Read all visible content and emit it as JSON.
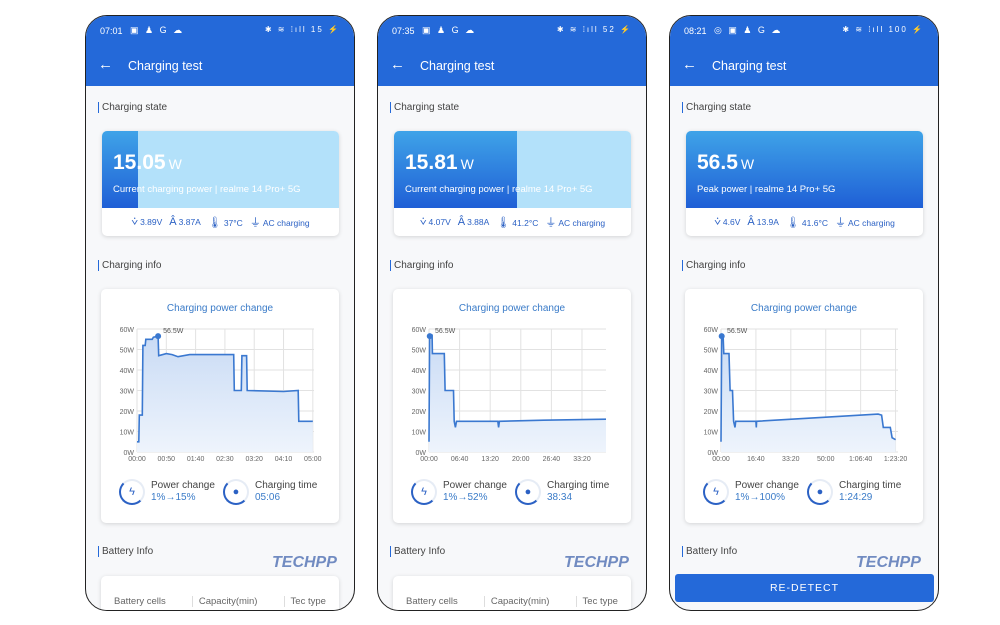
{
  "header": {
    "title": "Charging test",
    "back": "←"
  },
  "sections": {
    "state": "Charging state",
    "info": "Charging info",
    "battery": "Battery Info"
  },
  "chart_title": "Charging power change",
  "labels": {
    "power_change": "Power change",
    "charging_time": "Charging time",
    "ac": "AC charging"
  },
  "table_headers": [
    "Battery cells",
    "Capacity(min)",
    "Tec type"
  ],
  "redetect": "RE-DETECT",
  "watermark": "TECHPP",
  "colors": {
    "primary": "#2469d9",
    "line": "#3a78d0"
  },
  "phones": [
    {
      "status_time": "07:01",
      "left_icons": "▣ ♟ G ☁",
      "right_icons": "✱ ≋ ⁞ıll 15 ⚡",
      "power": "15.05",
      "unit": "W",
      "subtitle": "Current charging power | realme 14 Pro+ 5G",
      "progress_percent": 15,
      "voltage": "3.89V",
      "current": "3.87A",
      "temp": "37°C",
      "power_change": "1%→15%",
      "charging_time": "05:06"
    },
    {
      "status_time": "07:35",
      "left_icons": "▣ ♟ G ☁",
      "right_icons": "✱ ≋ ⁞ıll 52 ⚡",
      "power": "15.81",
      "unit": "W",
      "subtitle": "Current charging power | realme 14 Pro+ 5G",
      "progress_percent": 52,
      "voltage": "4.07V",
      "current": "3.88A",
      "temp": "41.2°C",
      "power_change": "1%→52%",
      "charging_time": "38:34"
    },
    {
      "status_time": "08:21",
      "left_icons": "◎ ▣ ♟ G ☁",
      "right_icons": "✱ ≋ ⁞ıll 100 ⚡",
      "power": "56.5",
      "unit": "W",
      "subtitle": "Peak power | realme 14 Pro+ 5G",
      "progress_percent": 100,
      "voltage": "4.6V",
      "current": "13.9A",
      "temp": "41.6°C",
      "power_change": "1%→100%",
      "charging_time": "1:24:29"
    }
  ],
  "chart_data": [
    {
      "type": "area",
      "title": "Charging power change",
      "peak_label": "56.5W",
      "peak": [
        36,
        56.5
      ],
      "ylim": [
        0,
        60
      ],
      "xlim": [
        0,
        302
      ],
      "yticks": [
        0,
        10,
        20,
        30,
        40,
        50,
        60
      ],
      "ytick_labels": [
        "0W",
        "10W",
        "20W",
        "30W",
        "40W",
        "50W",
        "60W"
      ],
      "xticks": [
        0,
        50,
        100,
        150,
        200,
        250,
        300
      ],
      "xtick_labels": [
        "00:00",
        "00:50",
        "01:40",
        "02:30",
        "03:20",
        "04:10",
        "05:00"
      ],
      "points": [
        [
          0,
          5
        ],
        [
          3,
          5
        ],
        [
          4,
          18
        ],
        [
          9,
          18
        ],
        [
          10,
          52
        ],
        [
          14,
          52
        ],
        [
          15,
          55
        ],
        [
          26,
          55
        ],
        [
          28,
          56
        ],
        [
          36,
          56.5
        ],
        [
          37,
          47
        ],
        [
          50,
          48
        ],
        [
          60,
          47.5
        ],
        [
          70,
          46.5
        ],
        [
          90,
          47.5
        ],
        [
          150,
          47.5
        ],
        [
          165,
          47.5
        ],
        [
          166,
          30
        ],
        [
          178,
          30
        ],
        [
          179,
          47
        ],
        [
          187,
          47
        ],
        [
          188,
          30
        ],
        [
          250,
          29.5
        ],
        [
          275,
          30
        ],
        [
          276,
          15
        ],
        [
          300,
          15
        ]
      ]
    },
    {
      "type": "area",
      "title": "Charging power change",
      "peak_label": "56.5W",
      "peak": [
        10,
        56.5
      ],
      "ylim": [
        0,
        60
      ],
      "xlim": [
        0,
        2314
      ],
      "yticks": [
        0,
        10,
        20,
        30,
        40,
        50,
        60
      ],
      "ytick_labels": [
        "0W",
        "10W",
        "20W",
        "30W",
        "40W",
        "50W",
        "60W"
      ],
      "xticks": [
        0,
        400,
        800,
        1200,
        1600,
        2000
      ],
      "xtick_labels": [
        "00:00",
        "06:40",
        "13:20",
        "20:00",
        "26:40",
        "33:20"
      ],
      "points": [
        [
          0,
          5
        ],
        [
          8,
          57
        ],
        [
          40,
          57
        ],
        [
          45,
          48
        ],
        [
          200,
          48
        ],
        [
          210,
          30
        ],
        [
          320,
          30
        ],
        [
          330,
          15
        ],
        [
          345,
          12
        ],
        [
          360,
          15
        ],
        [
          900,
          15
        ],
        [
          910,
          12
        ],
        [
          920,
          15
        ],
        [
          1500,
          15.5
        ],
        [
          2314,
          16
        ]
      ]
    },
    {
      "type": "area",
      "title": "Charging power change",
      "peak_label": "56.5W",
      "peak": [
        20,
        56.5
      ],
      "ylim": [
        0,
        60
      ],
      "xlim": [
        0,
        5070
      ],
      "yticks": [
        0,
        10,
        20,
        30,
        40,
        50,
        60
      ],
      "ytick_labels": [
        "0W",
        "10W",
        "20W",
        "30W",
        "40W",
        "50W",
        "60W"
      ],
      "xticks": [
        0,
        1000,
        2000,
        3000,
        4000,
        5000
      ],
      "xtick_labels": [
        "00:00",
        "16:40",
        "33:20",
        "50:00",
        "1:06:40",
        "1:23:20"
      ],
      "points": [
        [
          0,
          5
        ],
        [
          20,
          57
        ],
        [
          60,
          57
        ],
        [
          80,
          48
        ],
        [
          230,
          48
        ],
        [
          260,
          30
        ],
        [
          330,
          30
        ],
        [
          360,
          15
        ],
        [
          400,
          12
        ],
        [
          420,
          15
        ],
        [
          1000,
          15
        ],
        [
          1010,
          12
        ],
        [
          1020,
          15
        ],
        [
          3000,
          17
        ],
        [
          4500,
          18.5
        ],
        [
          4600,
          18
        ],
        [
          4650,
          12
        ],
        [
          4850,
          12
        ],
        [
          4900,
          7
        ],
        [
          5000,
          6
        ]
      ]
    }
  ]
}
